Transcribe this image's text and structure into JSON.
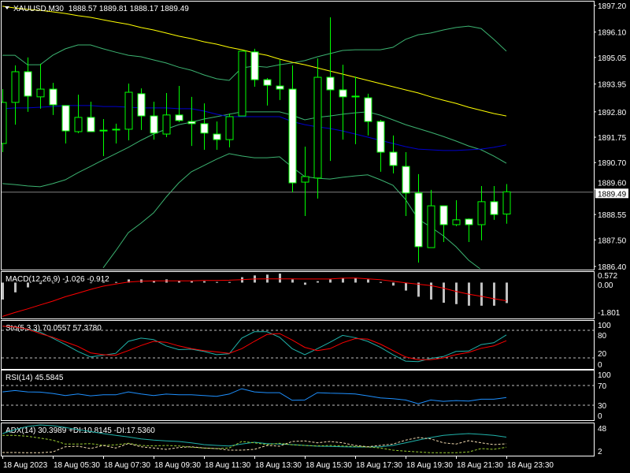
{
  "chart_header": {
    "symbol_timeframe": "XAUUSD,M30",
    "ohlc_text": "1888.57 1889.81 1888.17 1889.49"
  },
  "colors": {
    "background": "#000000",
    "frame": "#ffffff",
    "candle_outline": "#00ff00",
    "bear_fill": "#ffffff",
    "bull_fill": "#000000",
    "ma_slow": "#ffff00",
    "ma_fast": "#0000cd",
    "bollinger": "#3cb371",
    "bid_line": "#808080",
    "macd_hist": "#c0c0c0",
    "macd_signal": "#ff0000",
    "sto_main": "#20b2aa",
    "sto_signal": "#ff0000",
    "rsi": "#1e90ff",
    "adx": "#20b2aa",
    "plus_di": "#9acd32",
    "minus_di": "#f5deb3"
  },
  "chart_data": [
    {
      "type": "candlestick",
      "title": "XAUUSD,M30",
      "price_axis_labels": [
        "1897.20",
        "1896.10",
        "1895.05",
        "1893.95",
        "1892.80",
        "1891.75",
        "1890.70",
        "1889.60",
        "1888.55",
        "1887.50",
        "1886.40"
      ],
      "ylim": [
        1886.4,
        1897.2
      ],
      "bid_price": "1889.49",
      "time_labels": [
        "18 Aug 2023",
        "18 Aug 05:30",
        "18 Aug 07:30",
        "18 Aug 09:30",
        "18 Aug 11:30",
        "18 Aug 13:30",
        "18 Aug 15:30",
        "18 Aug 17:30",
        "18 Aug 19:30",
        "18 Aug 21:30",
        "18 Aug 23:30"
      ],
      "candles": [
        [
          1891.49,
          1893.74,
          1891.13,
          1893.19
        ],
        [
          1893.19,
          1894.72,
          1892.27,
          1894.46
        ],
        [
          1894.46,
          1895.05,
          1892.8,
          1893.45
        ],
        [
          1893.42,
          1894.79,
          1892.93,
          1893.74
        ],
        [
          1893.74,
          1894.0,
          1892.67,
          1893.09
        ],
        [
          1893.06,
          1893.06,
          1891.49,
          1892.01
        ],
        [
          1891.98,
          1893.51,
          1891.92,
          1892.57
        ],
        [
          1892.57,
          1893.22,
          1891.98,
          1891.98
        ],
        [
          1892.04,
          1892.5,
          1890.97,
          1892.01
        ],
        [
          1892.08,
          1892.31,
          1891.49,
          1892.05
        ],
        [
          1892.08,
          1893.97,
          1891.62,
          1893.61
        ],
        [
          1893.55,
          1893.77,
          1892.05,
          1892.63
        ],
        [
          1892.63,
          1893.22,
          1891.65,
          1891.92
        ],
        [
          1891.88,
          1893.58,
          1891.75,
          1892.67
        ],
        [
          1892.67,
          1893.87,
          1892.37,
          1892.44
        ],
        [
          1892.4,
          1893.42,
          1891.39,
          1892.31
        ],
        [
          1892.31,
          1893.15,
          1891.23,
          1891.92
        ],
        [
          1891.88,
          1892.4,
          1891.23,
          1891.65
        ],
        [
          1891.65,
          1892.73,
          1891.33,
          1892.6
        ],
        [
          1892.63,
          1895.31,
          1892.63,
          1895.31
        ],
        [
          1895.28,
          1895.41,
          1893.84,
          1894.13
        ],
        [
          1894.13,
          1894.2,
          1893.06,
          1893.9
        ],
        [
          1893.87,
          1894.95,
          1893.29,
          1893.74
        ],
        [
          1893.74,
          1894.72,
          1889.47,
          1889.86
        ],
        [
          1889.89,
          1891.36,
          1888.49,
          1890.12
        ],
        [
          1890.06,
          1895.01,
          1889.21,
          1894.23
        ],
        [
          1894.23,
          1896.71,
          1890.77,
          1893.71
        ],
        [
          1893.71,
          1894.75,
          1891.65,
          1893.42
        ],
        [
          1893.45,
          1894.26,
          1891.46,
          1893.45
        ],
        [
          1893.38,
          1893.55,
          1891.82,
          1892.4
        ],
        [
          1892.4,
          1892.47,
          1890.32,
          1891.13
        ],
        [
          1891.13,
          1891.82,
          1890.25,
          1890.58
        ],
        [
          1890.54,
          1891.13,
          1888.49,
          1889.44
        ],
        [
          1889.44,
          1890.22,
          1886.56,
          1887.22
        ],
        [
          1887.18,
          1889.57,
          1887.18,
          1888.91
        ],
        [
          1888.91,
          1888.91,
          1887.41,
          1888.13
        ],
        [
          1888.13,
          1889.14,
          1888.07,
          1888.33
        ],
        [
          1888.36,
          1888.39,
          1887.41,
          1888.13
        ],
        [
          1888.13,
          1889.73,
          1887.48,
          1889.08
        ],
        [
          1889.08,
          1889.73,
          1888.33,
          1888.55
        ],
        [
          1888.57,
          1889.81,
          1888.17,
          1889.49
        ]
      ],
      "overlays": {
        "ma_slow": [
          1897.17,
          1897.1,
          1897.04,
          1897.0,
          1896.94,
          1896.87,
          1896.78,
          1896.71,
          1896.61,
          1896.51,
          1896.42,
          1896.29,
          1896.19,
          1896.06,
          1895.93,
          1895.83,
          1895.7,
          1895.6,
          1895.47,
          1895.37,
          1895.24,
          1895.14,
          1894.98,
          1894.85,
          1894.75,
          1894.62,
          1894.49,
          1894.36,
          1894.23,
          1894.1,
          1893.97,
          1893.84,
          1893.71,
          1893.58,
          1893.42,
          1893.28,
          1893.15,
          1892.99,
          1892.86,
          1892.73,
          1892.63
        ],
        "ma_fast": [
          1892.93,
          1892.96,
          1892.96,
          1892.99,
          1893.02,
          1893.06,
          1893.06,
          1893.06,
          1893.02,
          1893.02,
          1892.99,
          1892.96,
          1892.96,
          1892.96,
          1892.93,
          1892.93,
          1892.83,
          1892.7,
          1892.6,
          1892.6,
          1892.6,
          1892.6,
          1892.6,
          1892.4,
          1892.27,
          1892.18,
          1892.11,
          1892.01,
          1891.88,
          1891.75,
          1891.62,
          1891.49,
          1891.36,
          1891.26,
          1891.23,
          1891.2,
          1891.2,
          1891.23,
          1891.26,
          1891.33,
          1891.43
        ],
        "bb_upper": [
          1895.14,
          1895.14,
          1894.75,
          1894.75,
          1895.14,
          1895.41,
          1895.57,
          1895.57,
          1895.41,
          1895.27,
          1895.14,
          1895.08,
          1894.95,
          1894.82,
          1894.65,
          1894.52,
          1894.33,
          1894.17,
          1894.1,
          1894.62,
          1894.69,
          1894.65,
          1894.75,
          1894.82,
          1894.92,
          1895.08,
          1895.21,
          1895.34,
          1895.37,
          1895.37,
          1895.37,
          1895.47,
          1895.8,
          1895.99,
          1896.06,
          1896.19,
          1896.29,
          1896.35,
          1896.25,
          1895.8,
          1895.31
        ],
        "bb_middle": [
          1889.83,
          1889.79,
          1889.73,
          1889.7,
          1889.83,
          1889.99,
          1890.28,
          1890.54,
          1890.81,
          1891.07,
          1891.33,
          1891.62,
          1891.88,
          1892.08,
          1892.27,
          1892.37,
          1892.5,
          1892.6,
          1892.7,
          1892.8,
          1892.8,
          1892.8,
          1892.8,
          1892.66,
          1892.47,
          1892.57,
          1892.63,
          1892.7,
          1892.76,
          1892.8,
          1892.66,
          1892.47,
          1892.27,
          1892.11,
          1891.95,
          1891.78,
          1891.59,
          1891.39,
          1891.23,
          1890.97,
          1890.67
        ],
        "bb_lower": [
          null,
          null,
          null,
          null,
          null,
          null,
          null,
          null,
          1886.34,
          1887.05,
          1887.8,
          1888.19,
          1888.62,
          1889.27,
          1889.86,
          1890.32,
          1890.58,
          1890.84,
          1891.07,
          1890.97,
          1890.9,
          1890.9,
          1890.94,
          1890.51,
          1890.12,
          1890.05,
          1890.02,
          1890.09,
          1890.15,
          1890.19,
          1889.99,
          1889.76,
          1889.17,
          1888.36,
          1888.03,
          1887.67,
          1887.22,
          1886.66,
          1886.27,
          null,
          null
        ]
      }
    },
    {
      "type": "bar+line",
      "title": "MACD(12,26,9) -1.026 -0.912",
      "axis_labels": [
        "0.572",
        "0.00",
        "-1.801"
      ],
      "ylim": [
        -1.801,
        0.572
      ],
      "histogram": [
        -0.85,
        -0.49,
        -0.24,
        -0.07,
        -0.01,
        0.03,
        0.03,
        0.01,
        0.03,
        0.03,
        0.16,
        0.16,
        0.09,
        0.16,
        0.09,
        0.07,
        0.07,
        0.03,
        0.03,
        0.27,
        0.36,
        0.4,
        0.45,
        0.16,
        -0.11,
        0.07,
        0.16,
        0.23,
        0.23,
        0.16,
        0.03,
        -0.15,
        -0.4,
        -0.71,
        -0.85,
        -1.01,
        -1.08,
        -1.16,
        -1.16,
        -1.16,
        -1.026
      ],
      "signal": [
        -1.7,
        -1.5,
        -1.32,
        -1.12,
        -0.93,
        -0.71,
        -0.53,
        -0.34,
        -0.18,
        -0.07,
        0.03,
        0.07,
        0.09,
        0.09,
        0.09,
        0.09,
        0.11,
        0.11,
        0.12,
        0.15,
        0.18,
        0.19,
        0.19,
        0.19,
        0.18,
        0.18,
        0.18,
        0.22,
        0.23,
        0.19,
        0.15,
        0.07,
        -0.01,
        -0.08,
        -0.15,
        -0.28,
        -0.44,
        -0.58,
        -0.69,
        -0.81,
        -0.912
      ]
    },
    {
      "type": "line",
      "title": "Sto(5,3,3) 70.0557 57.3780",
      "axis_labels": [
        "100",
        "80",
        "20",
        "0"
      ],
      "levels": [
        80,
        20
      ],
      "ylim": [
        0,
        100
      ],
      "main": [
        89,
        87,
        83,
        76,
        63,
        49,
        34,
        22,
        26,
        30,
        56,
        63,
        60,
        46,
        38,
        39,
        34,
        27,
        29,
        63,
        77,
        77,
        65,
        40,
        27,
        40,
        54,
        69,
        64,
        56,
        43,
        27,
        13,
        12,
        19,
        23,
        34,
        35,
        49,
        53,
        70.06
      ],
      "signal": [
        89,
        87,
        83,
        73,
        65,
        55,
        45,
        31,
        27,
        26,
        36,
        47,
        56,
        54,
        46,
        40,
        36,
        33,
        30,
        40,
        56,
        71,
        73,
        59,
        43,
        36,
        40,
        53,
        62,
        61,
        50,
        36,
        22,
        16,
        16,
        20,
        27,
        32,
        41,
        46,
        57.38
      ]
    },
    {
      "type": "line",
      "title": "RSI(14) 45.5845",
      "axis_labels": [
        "100",
        "70",
        "30",
        "0"
      ],
      "levels": [
        70,
        30
      ],
      "ylim": [
        0,
        100
      ],
      "values": [
        57.1,
        59.7,
        57.1,
        56.5,
        53.9,
        49.6,
        52.8,
        49.1,
        51.2,
        51.2,
        57.1,
        52.8,
        49.6,
        52.5,
        51.2,
        51.2,
        49.6,
        48.0,
        52.5,
        63.5,
        57.1,
        55.5,
        55.5,
        40.0,
        40.5,
        55.5,
        54.4,
        53.9,
        52.8,
        49.1,
        44.8,
        43.2,
        40.5,
        33.1,
        40.5,
        37.9,
        39.5,
        38.4,
        42.1,
        42.1,
        45.58
      ]
    },
    {
      "type": "line",
      "title": "ADX(14) 30.3989 +DI:10.8145 -DI:17.5360",
      "axis_labels": [
        "48",
        "2"
      ],
      "ylim": [
        2,
        48
      ],
      "adx": [
        37.3,
        44.9,
        51.1,
        54.1,
        52.6,
        49.0,
        44.9,
        41.3,
        37.3,
        33.7,
        30.6,
        27.0,
        24.5,
        23.0,
        21.9,
        19.4,
        15.8,
        14.3,
        13.2,
        16.8,
        20.4,
        17.8,
        16.8,
        15.8,
        14.3,
        12.7,
        12.2,
        11.7,
        11.2,
        11.2,
        11.7,
        14.3,
        19.4,
        24.5,
        29.6,
        33.7,
        35.7,
        37.3,
        35.7,
        33.7,
        30.4
      ],
      "plus_di": [
        33.7,
        33.7,
        32.1,
        28.6,
        24.5,
        16.8,
        16.8,
        17.8,
        14.3,
        15.3,
        18.4,
        14.3,
        13.2,
        14.3,
        13.2,
        10.7,
        9.2,
        8.1,
        9.2,
        21.9,
        19.4,
        15.8,
        18.4,
        15.3,
        14.3,
        13.2,
        14.3,
        13.2,
        12.2,
        11.2,
        9.2,
        5.1,
        3.0,
        1.5,
        0,
        0,
        0,
        1.5,
        8.1,
        6.6,
        10.81
      ],
      "minus_di": [
        0.5,
        0.5,
        0,
        0,
        1.5,
        11.7,
        12.7,
        8.1,
        14.3,
        9.2,
        17.8,
        11.7,
        9.2,
        6.6,
        10.2,
        11.7,
        9.2,
        8.1,
        5.1,
        5.1,
        6.6,
        14.3,
        12.7,
        21.9,
        23.0,
        19.4,
        21.9,
        19.4,
        14.3,
        11.7,
        14.3,
        16.8,
        24.5,
        29.6,
        27.0,
        19.4,
        16.8,
        23.5,
        19.4,
        15.8,
        17.54
      ]
    }
  ]
}
